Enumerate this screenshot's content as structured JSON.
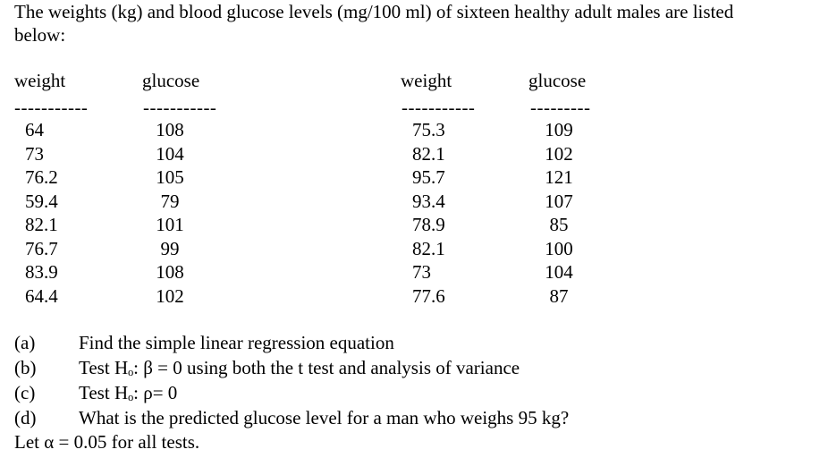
{
  "intro": {
    "line1": "The weights (kg) and blood glucose levels (mg/100 ml) of sixteen healthy adult males are listed",
    "line2": "below:"
  },
  "table": {
    "headers": [
      "weight",
      "glucose",
      "weight",
      "glucose"
    ],
    "dashes": [
      "-----------",
      "-----------",
      "-----------",
      "---------"
    ],
    "left": {
      "weight": [
        "64",
        "73",
        "76.2",
        "59.4",
        "82.1",
        "76.7",
        "83.9",
        "64.4"
      ],
      "glucose": [
        "108",
        "104",
        "105",
        "79",
        "101",
        "99",
        "108",
        "102"
      ]
    },
    "right": {
      "weight": [
        "75.3",
        "82.1",
        "95.7",
        "93.4",
        "78.9",
        "82.1",
        "73",
        "77.6"
      ],
      "glucose": [
        "109",
        "102",
        "121",
        "107",
        "85",
        "100",
        "104",
        "87"
      ]
    }
  },
  "questions": [
    {
      "label": "(a)",
      "text": "Find the simple linear regression equation"
    },
    {
      "label": "(b)",
      "text": "Test Hₒ:  β = 0 using both the t test and analysis of variance"
    },
    {
      "label": "(c)",
      "text": "Test Hₒ: ρ= 0"
    },
    {
      "label": "(d)",
      "text": "What is the predicted glucose level for a man who weighs 95 kg?"
    }
  ],
  "footer": {
    "alpha_note": "Let α = 0.05 for all tests."
  }
}
